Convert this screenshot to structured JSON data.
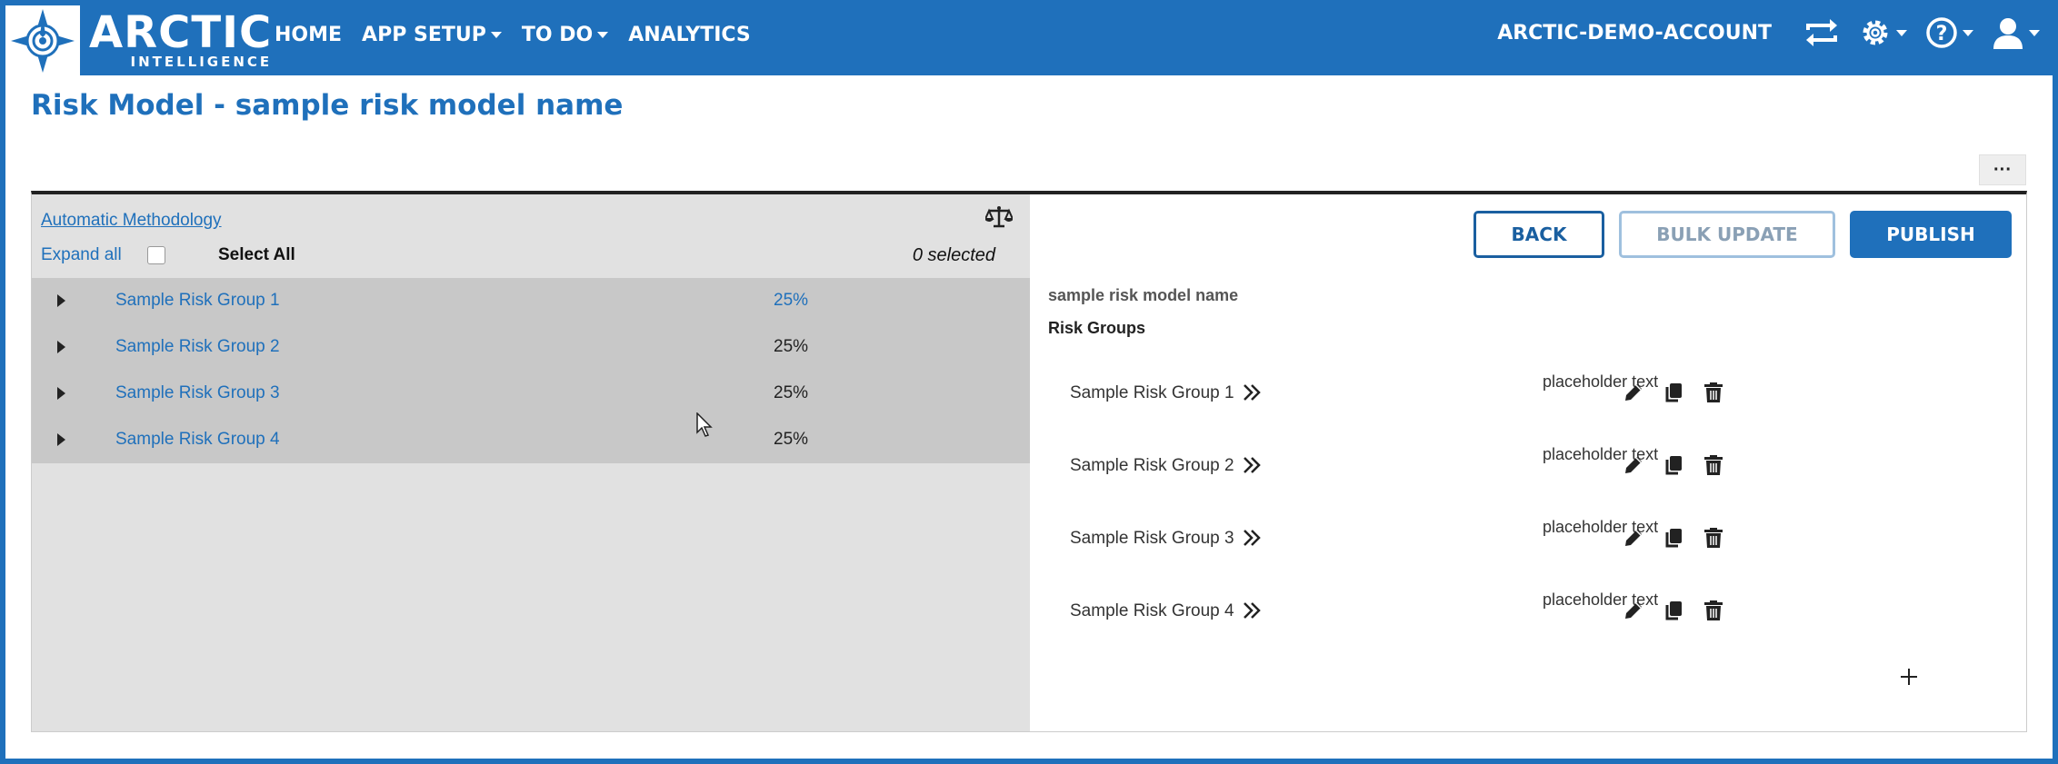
{
  "brand": {
    "name": "ARCTIC",
    "tagline": "INTELLIGENCE"
  },
  "nav": {
    "items": [
      {
        "label": "HOME",
        "dropdown": false
      },
      {
        "label": "APP SETUP",
        "dropdown": true
      },
      {
        "label": "TO DO",
        "dropdown": true
      },
      {
        "label": "ANALYTICS",
        "dropdown": false
      }
    ],
    "account": "ARCTIC-DEMO-ACCOUNT"
  },
  "page": {
    "title": "Risk Model - sample risk model name",
    "more": "···"
  },
  "left_panel": {
    "methodology_link": "Automatic Methodology",
    "expand_all": "Expand all",
    "select_all": "Select All",
    "selected": "0 selected",
    "groups": [
      {
        "name": "Sample Risk Group 1",
        "percent": "25%",
        "highlight": true
      },
      {
        "name": "Sample Risk Group 2",
        "percent": "25%",
        "highlight": false
      },
      {
        "name": "Sample Risk Group 3",
        "percent": "25%",
        "highlight": false
      },
      {
        "name": "Sample Risk Group 4",
        "percent": "25%",
        "highlight": false
      }
    ]
  },
  "right_panel": {
    "buttons": {
      "back": "BACK",
      "bulk_update": "BULK UPDATE",
      "publish": "PUBLISH"
    },
    "model_name": "sample risk model name",
    "groups_heading": "Risk Groups",
    "rows": [
      {
        "name": "Sample Risk Group 1",
        "text": "placeholder text"
      },
      {
        "name": "Sample Risk Group 2",
        "text": "placeholder text"
      },
      {
        "name": "Sample Risk Group 3",
        "text": "placeholder text"
      },
      {
        "name": "Sample Risk Group 4",
        "text": "placeholder text"
      }
    ]
  },
  "colors": {
    "primary": "#1f70bb",
    "panel_bg": "#e1e1e1",
    "group_bg": "#c8c8c8"
  }
}
